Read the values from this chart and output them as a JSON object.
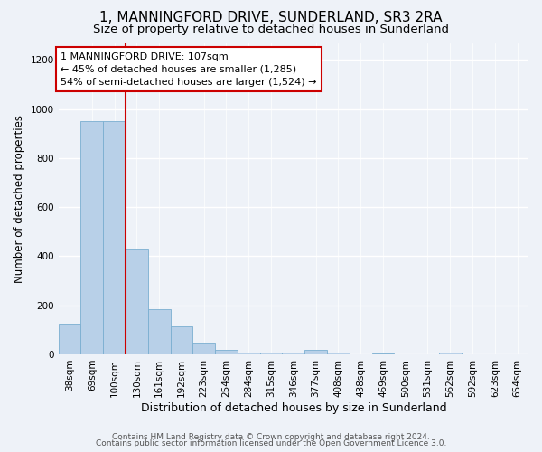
{
  "title": "1, MANNINGFORD DRIVE, SUNDERLAND, SR3 2RA",
  "subtitle": "Size of property relative to detached houses in Sunderland",
  "xlabel": "Distribution of detached houses by size in Sunderland",
  "ylabel": "Number of detached properties",
  "categories": [
    "38sqm",
    "69sqm",
    "100sqm",
    "130sqm",
    "161sqm",
    "192sqm",
    "223sqm",
    "254sqm",
    "284sqm",
    "315sqm",
    "346sqm",
    "377sqm",
    "408sqm",
    "438sqm",
    "469sqm",
    "500sqm",
    "531sqm",
    "562sqm",
    "592sqm",
    "623sqm",
    "654sqm"
  ],
  "values": [
    125,
    950,
    950,
    430,
    185,
    115,
    47,
    20,
    8,
    8,
    8,
    20,
    8,
    0,
    5,
    0,
    0,
    8,
    0,
    0,
    0
  ],
  "bar_color": "#b8d0e8",
  "bar_edge_color": "#7aaed0",
  "red_line_x": 2.5,
  "annotation_line1": "1 MANNINGFORD DRIVE: 107sqm",
  "annotation_line2": "← 45% of detached houses are smaller (1,285)",
  "annotation_line3": "54% of semi-detached houses are larger (1,524) →",
  "annotation_box_color": "#ffffff",
  "annotation_box_edge": "#cc0000",
  "ylim": [
    0,
    1270
  ],
  "yticks": [
    0,
    200,
    400,
    600,
    800,
    1000,
    1200
  ],
  "footer1": "Contains HM Land Registry data © Crown copyright and database right 2024.",
  "footer2": "Contains public sector information licensed under the Open Government Licence 3.0.",
  "background_color": "#eef2f8",
  "grid_color": "#ffffff",
  "title_fontsize": 11,
  "subtitle_fontsize": 9.5,
  "tick_fontsize": 7.5,
  "ylabel_fontsize": 8.5,
  "xlabel_fontsize": 9,
  "annotation_fontsize": 8,
  "footer_fontsize": 6.5
}
